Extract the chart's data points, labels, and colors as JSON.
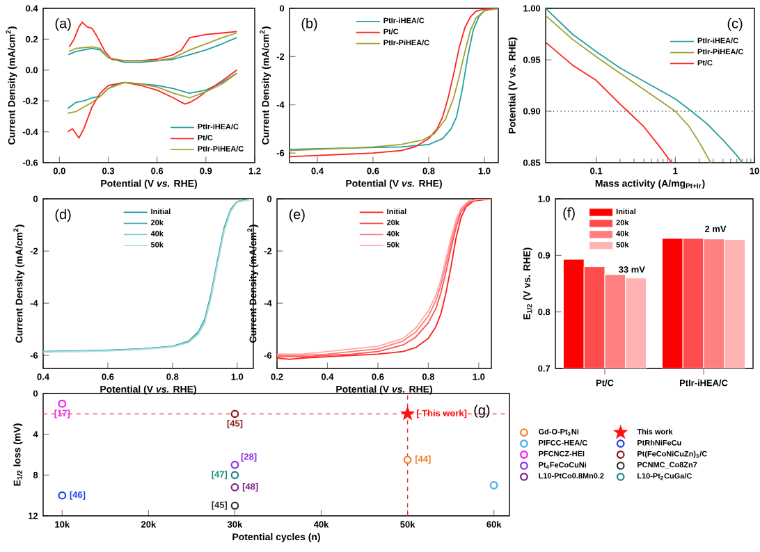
{
  "chart_data": [
    {
      "type": "line",
      "annotations": [
        "(a)"
      ],
      "xlabel": "Potential (V *vs.* RHE)",
      "ylabel": "Current Density (mA/cm$^{2}$)",
      "xlim": [
        -0.1,
        1.2
      ],
      "ylim": [
        -0.6,
        0.4
      ],
      "xticks": [
        {
          "value": 0,
          "label": "0.0"
        },
        0.3,
        0.6,
        0.9,
        1.2
      ],
      "yticks": [
        -0.6,
        -0.4,
        -0.2,
        {
          "value": 0,
          "label": "0.0"
        },
        0.2,
        0.4
      ],
      "legend": "bottom right",
      "series": [
        {
          "name": "PtIr-iHEA/C",
          "color": "#20a0a0",
          "x": [
            0.055,
            0.1,
            0.2,
            0.25,
            0.3,
            0.4,
            0.5,
            0.6,
            0.7,
            0.8,
            0.9,
            1.0,
            1.09
          ],
          "values": [
            0.1,
            0.12,
            0.14,
            0.13,
            0.08,
            0.05,
            0.05,
            0.06,
            0.07,
            0.1,
            0.13,
            0.17,
            0.21
          ]
        },
        {
          "name": "Pt/C",
          "color": "#ff2020",
          "x": [
            0.06,
            0.09,
            0.12,
            0.14,
            0.17,
            0.2,
            0.23,
            0.28,
            0.32,
            0.4,
            0.5,
            0.6,
            0.7,
            0.75,
            0.8,
            0.85,
            0.9,
            1.0,
            1.09
          ],
          "values": [
            0.15,
            0.2,
            0.28,
            0.31,
            0.28,
            0.27,
            0.22,
            0.12,
            0.07,
            0.06,
            0.06,
            0.07,
            0.1,
            0.13,
            0.21,
            0.22,
            0.23,
            0.24,
            0.25
          ]
        },
        {
          "name": "PtIr-PiHEA/C",
          "color": "#a0a030",
          "x": [
            0.06,
            0.1,
            0.2,
            0.25,
            0.3,
            0.4,
            0.6,
            0.7,
            0.8,
            0.9,
            1.0,
            1.09
          ],
          "values": [
            0.12,
            0.14,
            0.15,
            0.14,
            0.08,
            0.06,
            0.06,
            0.08,
            0.13,
            0.17,
            0.21,
            0.24
          ]
        },
        {
          "color": "#20a0a0",
          "x": [
            0.05,
            0.1,
            0.15,
            0.2,
            0.25,
            0.3,
            0.35,
            0.4,
            0.5,
            0.6,
            0.7,
            0.8,
            0.9,
            1.0,
            1.09
          ],
          "values": [
            -0.25,
            -0.21,
            -0.2,
            -0.18,
            -0.17,
            -0.12,
            -0.09,
            -0.08,
            -0.09,
            -0.1,
            -0.12,
            -0.15,
            -0.13,
            -0.08,
            -0.02
          ]
        },
        {
          "color": "#ff2020",
          "x": [
            0.05,
            0.08,
            0.12,
            0.15,
            0.2,
            0.25,
            0.3,
            0.4,
            0.5,
            0.6,
            0.7,
            0.77,
            0.8,
            0.85,
            0.9,
            1.0,
            1.09
          ],
          "values": [
            -0.4,
            -0.38,
            -0.44,
            -0.38,
            -0.24,
            -0.15,
            -0.1,
            -0.08,
            -0.1,
            -0.13,
            -0.18,
            -0.22,
            -0.21,
            -0.18,
            -0.14,
            -0.07,
            0.0
          ]
        },
        {
          "color": "#a0a030",
          "x": [
            0.05,
            0.1,
            0.15,
            0.2,
            0.25,
            0.3,
            0.4,
            0.5,
            0.6,
            0.7,
            0.8,
            0.9,
            1.0,
            1.09
          ],
          "values": [
            -0.28,
            -0.27,
            -0.24,
            -0.21,
            -0.17,
            -0.12,
            -0.08,
            -0.09,
            -0.11,
            -0.15,
            -0.18,
            -0.14,
            -0.09,
            -0.02
          ]
        }
      ]
    },
    {
      "type": "line",
      "annotations": [
        "(b)"
      ],
      "xlabel": "Potential (V *vs.* RHE)",
      "ylabel": "Current Density (mA/cm$^{2}$)",
      "xlim": [
        0.3,
        1.05
      ],
      "ylim": [
        -6.4,
        0
      ],
      "xticks": [
        0.4,
        0.6,
        0.8,
        {
          "value": 1,
          "label": "1.0"
        }
      ],
      "yticks": [
        -6,
        -4,
        -2,
        0
      ],
      "legend": "top",
      "series": [
        {
          "name": "PtIr-iHEA/C",
          "color": "#20a0a0",
          "x": [
            0.3,
            0.5,
            0.7,
            0.8,
            0.85,
            0.88,
            0.9,
            0.92,
            0.94,
            0.96,
            0.98,
            1.0,
            1.05
          ],
          "values": [
            -5.85,
            -5.8,
            -5.75,
            -5.65,
            -5.4,
            -5.0,
            -4.5,
            -3.4,
            -2.0,
            -0.9,
            -0.35,
            -0.1,
            0
          ]
        },
        {
          "name": "Pt/C",
          "color": "#ff2020",
          "x": [
            0.3,
            0.4,
            0.5,
            0.6,
            0.7,
            0.75,
            0.8,
            0.83,
            0.85,
            0.87,
            0.89,
            0.91,
            0.93,
            0.95,
            0.97,
            1.0,
            1.05
          ],
          "values": [
            -6.15,
            -6.1,
            -6.05,
            -6.0,
            -5.9,
            -5.75,
            -5.4,
            -5.0,
            -4.5,
            -3.7,
            -2.7,
            -1.6,
            -0.8,
            -0.35,
            -0.12,
            -0.03,
            0
          ]
        },
        {
          "name": "PtIr-PiHEA/C",
          "color": "#a0a030",
          "x": [
            0.3,
            0.5,
            0.6,
            0.7,
            0.78,
            0.82,
            0.86,
            0.89,
            0.91,
            0.93,
            0.95,
            0.97,
            1.0,
            1.05
          ],
          "values": [
            -5.9,
            -5.8,
            -5.75,
            -5.65,
            -5.45,
            -5.2,
            -4.6,
            -3.7,
            -2.8,
            -1.8,
            -0.9,
            -0.4,
            -0.1,
            0
          ]
        }
      ]
    },
    {
      "type": "line",
      "annotations": [
        "(c)"
      ],
      "xlabel": "Mass activity (A/mg$_{Pt+Ir}$)",
      "ylabel": "Potential (V vs. RHE)",
      "log": "x",
      "xlim": [
        0.023,
        10
      ],
      "ylim": [
        0.85,
        1.0
      ],
      "xticks": [
        0.1,
        1,
        10
      ],
      "yticks": [
        0.85,
        {
          "value": 0.9,
          "label": "0.90"
        },
        0.95,
        {
          "value": 1.0,
          "label": "1.00"
        }
      ],
      "legend": "top right",
      "ref_lines": [
        {
          "axis": "y",
          "value": 0.9,
          "color": "#555555",
          "line_style": "dotted"
        }
      ],
      "series": [
        {
          "name": "PtIr-iHEA/C",
          "color": "#20a0a0",
          "x": [
            0.023,
            0.05,
            0.1,
            0.2,
            0.5,
            1,
            1.6,
            2.5,
            4,
            6,
            7
          ],
          "values": [
            1.0,
            0.975,
            0.958,
            0.942,
            0.925,
            0.912,
            0.9,
            0.888,
            0.872,
            0.857,
            0.85
          ]
        },
        {
          "name": "PtIr-PiHEA/C",
          "color": "#a0a030",
          "x": [
            0.023,
            0.05,
            0.1,
            0.2,
            0.5,
            1,
            1.5,
            2,
            2.8
          ],
          "values": [
            0.993,
            0.97,
            0.953,
            0.937,
            0.916,
            0.9,
            0.885,
            0.87,
            0.85
          ]
        },
        {
          "name": "Pt/C",
          "color": "#ff2020",
          "x": [
            0.023,
            0.05,
            0.1,
            0.2,
            0.25,
            0.4,
            0.6,
            0.9
          ],
          "values": [
            0.967,
            0.945,
            0.93,
            0.907,
            0.9,
            0.885,
            0.868,
            0.85
          ]
        }
      ]
    },
    {
      "type": "line",
      "annotations": [
        "(d)"
      ],
      "xlabel": "Potential (V *vs.* RHE)",
      "ylabel": "Current Density (mA/cm$^{2}$)",
      "xlim": [
        0.4,
        1.05
      ],
      "ylim": [
        -6.5,
        0
      ],
      "xticks": [
        0.4,
        0.6,
        0.8,
        {
          "value": 1,
          "label": "1.0"
        }
      ],
      "yticks": [
        -6,
        -4,
        -2,
        0
      ],
      "legend": "top",
      "series": [
        {
          "name": "Initial",
          "color": "#1a9a9a",
          "x": [
            0.4,
            0.5,
            0.6,
            0.7,
            0.8,
            0.85,
            0.88,
            0.9,
            0.92,
            0.94,
            0.96,
            0.98,
            1.0,
            1.05
          ],
          "values": [
            -5.85,
            -5.83,
            -5.8,
            -5.75,
            -5.65,
            -5.45,
            -5.1,
            -4.6,
            -3.6,
            -2.3,
            -1.1,
            -0.4,
            -0.1,
            0
          ]
        },
        {
          "name": "20k",
          "color": "#4db3b3",
          "x": [
            0.4,
            0.5,
            0.6,
            0.7,
            0.8,
            0.85,
            0.88,
            0.9,
            0.92,
            0.94,
            0.96,
            0.98,
            1.0,
            1.05
          ],
          "values": [
            -5.86,
            -5.84,
            -5.81,
            -5.76,
            -5.66,
            -5.47,
            -5.13,
            -4.65,
            -3.66,
            -2.36,
            -1.15,
            -0.43,
            -0.11,
            0
          ]
        },
        {
          "name": "40k",
          "color": "#80cccc",
          "x": [
            0.4,
            0.5,
            0.6,
            0.7,
            0.8,
            0.85,
            0.88,
            0.9,
            0.92,
            0.94,
            0.96,
            0.98,
            1.0,
            1.05
          ],
          "values": [
            -5.87,
            -5.85,
            -5.82,
            -5.77,
            -5.67,
            -5.49,
            -5.16,
            -4.7,
            -3.72,
            -2.42,
            -1.2,
            -0.46,
            -0.12,
            0
          ]
        },
        {
          "name": "50k",
          "color": "#b3e0e0",
          "x": [
            0.4,
            0.5,
            0.6,
            0.7,
            0.8,
            0.85,
            0.88,
            0.9,
            0.92,
            0.94,
            0.96,
            0.98,
            1.0,
            1.05
          ],
          "values": [
            -5.88,
            -5.86,
            -5.83,
            -5.78,
            -5.68,
            -5.51,
            -5.19,
            -4.75,
            -3.78,
            -2.48,
            -1.25,
            -0.49,
            -0.13,
            0
          ]
        }
      ]
    },
    {
      "type": "line",
      "annotations": [
        "(e)"
      ],
      "xlabel": "Potential (V *vs.* RHE)",
      "ylabel": "Current Density (mA/cm$^{2}$)",
      "xlim": [
        0.2,
        1.05
      ],
      "ylim": [
        -6.5,
        0
      ],
      "xticks": [
        0.2,
        0.4,
        0.6,
        0.8,
        {
          "value": 1,
          "label": "1.0"
        }
      ],
      "yticks": [
        -6,
        -4,
        -2,
        0
      ],
      "legend": "top",
      "series": [
        {
          "name": "Initial",
          "color": "#ff1a1a",
          "x": [
            0.2,
            0.25,
            0.3,
            0.4,
            0.5,
            0.6,
            0.7,
            0.75,
            0.8,
            0.83,
            0.85,
            0.87,
            0.89,
            0.91,
            0.93,
            0.95,
            0.98,
            1.05
          ],
          "values": [
            -6.1,
            -6.15,
            -6.1,
            -6.05,
            -6.0,
            -5.95,
            -5.85,
            -5.7,
            -5.35,
            -4.9,
            -4.4,
            -3.6,
            -2.6,
            -1.5,
            -0.7,
            -0.3,
            -0.08,
            0
          ]
        },
        {
          "name": "20k",
          "color": "#ff5050",
          "x": [
            0.2,
            0.3,
            0.4,
            0.5,
            0.6,
            0.7,
            0.75,
            0.8,
            0.83,
            0.85,
            0.87,
            0.89,
            0.91,
            0.93,
            0.96,
            1.0,
            1.05
          ],
          "values": [
            -6.05,
            -6.05,
            -6.0,
            -5.95,
            -5.85,
            -5.6,
            -5.3,
            -4.75,
            -4.2,
            -3.6,
            -2.8,
            -1.9,
            -1.1,
            -0.5,
            -0.15,
            -0.02,
            0
          ]
        },
        {
          "name": "40k",
          "color": "#ff7a7a",
          "x": [
            0.2,
            0.3,
            0.4,
            0.5,
            0.6,
            0.7,
            0.75,
            0.8,
            0.83,
            0.85,
            0.87,
            0.89,
            0.91,
            0.93,
            0.96,
            1.0,
            1.05
          ],
          "values": [
            -6.0,
            -6.0,
            -5.95,
            -5.85,
            -5.75,
            -5.45,
            -5.1,
            -4.5,
            -3.9,
            -3.3,
            -2.5,
            -1.7,
            -0.9,
            -0.4,
            -0.1,
            -0.02,
            0
          ]
        },
        {
          "name": "50k",
          "color": "#ffa8a8",
          "x": [
            0.2,
            0.3,
            0.4,
            0.5,
            0.6,
            0.7,
            0.75,
            0.8,
            0.83,
            0.85,
            0.87,
            0.89,
            0.91,
            0.93,
            0.96,
            1.0,
            1.05
          ],
          "values": [
            -5.95,
            -5.95,
            -5.85,
            -5.75,
            -5.65,
            -5.35,
            -4.95,
            -4.3,
            -3.7,
            -3.1,
            -2.3,
            -1.5,
            -0.8,
            -0.35,
            -0.08,
            -0.01,
            0
          ]
        }
      ]
    },
    {
      "type": "bar",
      "annotations": [
        "(f)",
        {
          "text": "33 mV",
          "x": "Pt/C",
          "y": 0.875
        },
        {
          "text": "2 mV",
          "x": "PtIr-iHEA/C",
          "y": 0.938
        }
      ],
      "ylabel": "E$_{1/2}$ (V vs. RHE)",
      "categories": [
        "Pt/C",
        "PtIr-iHEA/C"
      ],
      "ylim": [
        0.7,
        1.0
      ],
      "yticks": [
        0.7,
        0.8,
        0.9,
        {
          "value": 1,
          "label": "1.0"
        }
      ],
      "legend": "top left",
      "series": [
        {
          "name": "Initial",
          "color": "#ff0000",
          "values": [
            0.893,
            0.93
          ]
        },
        {
          "name": "20k",
          "color": "#ff4d4d",
          "values": [
            0.88,
            0.93
          ]
        },
        {
          "name": "40k",
          "color": "#ff8080",
          "values": [
            0.866,
            0.929
          ]
        },
        {
          "name": "50k",
          "color": "#ffb3b3",
          "values": [
            0.86,
            0.928
          ]
        }
      ]
    },
    {
      "type": "scatter",
      "annotations": [
        "(g)",
        {
          "text": "[17]",
          "x": 10000,
          "y": 1
        },
        {
          "text": "[45]",
          "x": 30000,
          "y": 2
        },
        {
          "text": "[ This work]",
          "x": 50000,
          "y": 2
        },
        {
          "text": "[44]",
          "x": 50000,
          "y": 6.5
        },
        {
          "text": "[28]",
          "x": 30000,
          "y": 7
        },
        {
          "text": "[47]",
          "x": 30000,
          "y": 8
        },
        {
          "text": "[48]",
          "x": 30000,
          "y": 9.2
        },
        {
          "text": "[46]",
          "x": 10000,
          "y": 10
        },
        {
          "text": "[45]",
          "x": 30000,
          "y": 11
        }
      ],
      "xlabel": "Potential cycles (n)",
      "ylabel": "E$_{1/2}$ loss (mV)",
      "xlim": [
        7800,
        61800
      ],
      "ylim": [
        12,
        0
      ],
      "xticks": [
        {
          "value": 10000,
          "label": "10k"
        },
        {
          "value": 20000,
          "label": "20k"
        },
        {
          "value": 30000,
          "label": "30k"
        },
        {
          "value": 40000,
          "label": "40k"
        },
        {
          "value": 50000,
          "label": "50k"
        },
        {
          "value": 60000,
          "label": "60k"
        }
      ],
      "yticks": [
        0,
        4,
        8,
        12
      ],
      "legend": "right",
      "ref_lines": [
        {
          "axis": "y",
          "value": 2,
          "color": "#e03030",
          "line_style": "dashed"
        },
        {
          "axis": "x",
          "value": 50000,
          "color": "#e03030",
          "line_style": "dashed"
        }
      ],
      "series": [
        {
          "name": "Gd-O-Pt$_{3}$Ni",
          "color": "#f08020",
          "x": [
            50000
          ],
          "values": [
            6.5
          ]
        },
        {
          "name": "This work",
          "color": "#ff1010",
          "x": [
            50000
          ],
          "values": [
            2
          ],
          "marker": "star"
        },
        {
          "name": "PIFCC-HEA/C",
          "color": "#40b0f0",
          "x": [
            60000
          ],
          "values": [
            9
          ]
        },
        {
          "name": "PtRhNiFeCu",
          "color": "#2040f0",
          "x": [
            10000
          ],
          "values": [
            10
          ]
        },
        {
          "name": "PFCNCZ-HEI",
          "color": "#f020f0",
          "x": [
            10000
          ],
          "values": [
            1
          ]
        },
        {
          "name": "Pt(FeCoNiCuZn)$_{3}$/C",
          "color": "#8b1a1a",
          "x": [
            30000
          ],
          "values": [
            2
          ]
        },
        {
          "name": "Pt$_{4}$FeCoCuNi",
          "color": "#8a2be2",
          "x": [
            30000
          ],
          "values": [
            7
          ]
        },
        {
          "name": "PCNMC_Co8Zn7",
          "color": "#333333",
          "x": [
            30000
          ],
          "values": [
            11
          ]
        },
        {
          "name": "L10-PtCo0.8Mn0.2",
          "color": "#7b2080",
          "x": [
            30000
          ],
          "values": [
            9.2
          ]
        },
        {
          "name": "L10-Pt$_{2}$CuGa/C",
          "color": "#1a8a80",
          "x": [
            30000
          ],
          "values": [
            8
          ]
        }
      ]
    }
  ]
}
